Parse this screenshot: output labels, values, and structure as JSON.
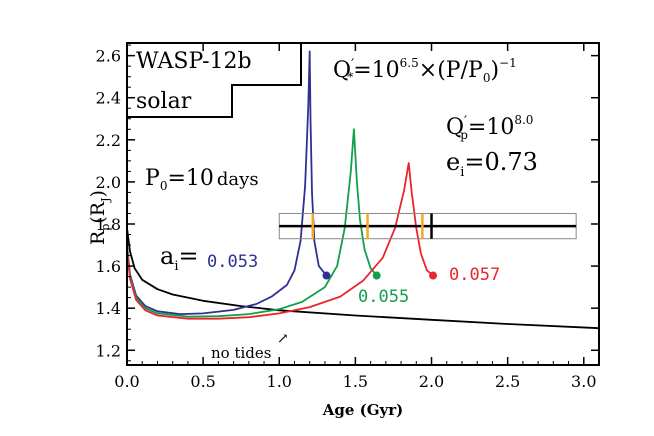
{
  "chart_data": {
    "type": "line",
    "xlabel": "Age (Gyr)",
    "ylabel_main": "R",
    "ylabel_sub_p": "p",
    "ylabel_paren": "(R",
    "ylabel_sub_j": "J",
    "ylabel_close": ")",
    "xlim": [
      0.0,
      3.1
    ],
    "ylim": [
      1.13,
      2.66
    ],
    "xticks": [
      0.0,
      0.5,
      1.0,
      1.5,
      2.0,
      2.5,
      3.0
    ],
    "xtick_labels": [
      "0.0",
      "0.5",
      "1.0",
      "1.5",
      "2.0",
      "2.5",
      "3.0"
    ],
    "yticks": [
      1.2,
      1.4,
      1.6,
      1.8,
      2.0,
      2.2,
      2.4,
      2.6
    ],
    "ytick_labels": [
      "1.2",
      "1.4",
      "1.6",
      "1.8",
      "2.0",
      "2.2",
      "2.4",
      "2.6"
    ],
    "series": [
      {
        "name": "no tides",
        "color": "#000000",
        "points": [
          [
            0.0,
            1.78
          ],
          [
            0.02,
            1.67
          ],
          [
            0.05,
            1.59
          ],
          [
            0.1,
            1.535
          ],
          [
            0.2,
            1.49
          ],
          [
            0.3,
            1.465
          ],
          [
            0.5,
            1.435
          ],
          [
            0.75,
            1.41
          ],
          [
            1.0,
            1.39
          ],
          [
            1.5,
            1.365
          ],
          [
            2.0,
            1.345
          ],
          [
            2.5,
            1.325
          ],
          [
            3.1,
            1.305
          ]
        ]
      },
      {
        "name": "0.053",
        "color": "#2e3192",
        "points": [
          [
            0.0,
            1.7
          ],
          [
            0.02,
            1.56
          ],
          [
            0.06,
            1.46
          ],
          [
            0.12,
            1.41
          ],
          [
            0.2,
            1.385
          ],
          [
            0.35,
            1.372
          ],
          [
            0.5,
            1.375
          ],
          [
            0.7,
            1.392
          ],
          [
            0.85,
            1.42
          ],
          [
            0.95,
            1.455
          ],
          [
            1.05,
            1.51
          ],
          [
            1.1,
            1.58
          ],
          [
            1.14,
            1.72
          ],
          [
            1.17,
            1.98
          ],
          [
            1.19,
            2.35
          ],
          [
            1.2,
            2.62
          ],
          [
            1.205,
            2.3
          ],
          [
            1.215,
            1.95
          ],
          [
            1.23,
            1.72
          ],
          [
            1.26,
            1.6
          ],
          [
            1.31,
            1.555
          ]
        ]
      },
      {
        "name": "0.055",
        "color": "#11a04a",
        "points": [
          [
            0.0,
            1.69
          ],
          [
            0.02,
            1.55
          ],
          [
            0.06,
            1.45
          ],
          [
            0.12,
            1.4
          ],
          [
            0.2,
            1.375
          ],
          [
            0.4,
            1.36
          ],
          [
            0.6,
            1.362
          ],
          [
            0.8,
            1.372
          ],
          [
            1.0,
            1.395
          ],
          [
            1.15,
            1.43
          ],
          [
            1.3,
            1.5
          ],
          [
            1.38,
            1.6
          ],
          [
            1.43,
            1.78
          ],
          [
            1.47,
            2.05
          ],
          [
            1.49,
            2.25
          ],
          [
            1.51,
            2.0
          ],
          [
            1.53,
            1.82
          ],
          [
            1.56,
            1.68
          ],
          [
            1.6,
            1.59
          ],
          [
            1.64,
            1.555
          ]
        ]
      },
      {
        "name": "0.057",
        "color": "#e8262c",
        "points": [
          [
            0.0,
            1.68
          ],
          [
            0.02,
            1.54
          ],
          [
            0.06,
            1.44
          ],
          [
            0.12,
            1.39
          ],
          [
            0.2,
            1.365
          ],
          [
            0.4,
            1.35
          ],
          [
            0.6,
            1.35
          ],
          [
            0.8,
            1.357
          ],
          [
            1.0,
            1.375
          ],
          [
            1.2,
            1.405
          ],
          [
            1.4,
            1.455
          ],
          [
            1.55,
            1.53
          ],
          [
            1.68,
            1.64
          ],
          [
            1.76,
            1.78
          ],
          [
            1.82,
            1.96
          ],
          [
            1.85,
            2.09
          ],
          [
            1.87,
            1.95
          ],
          [
            1.9,
            1.78
          ],
          [
            1.93,
            1.66
          ],
          [
            1.97,
            1.58
          ],
          [
            2.01,
            1.555
          ]
        ]
      }
    ],
    "end_markers": [
      {
        "series": "0.053",
        "x": 1.31,
        "y": 1.555,
        "color": "#2e3192"
      },
      {
        "series": "0.055",
        "x": 1.64,
        "y": 1.555,
        "color": "#11a04a"
      },
      {
        "series": "0.057",
        "x": 2.01,
        "y": 1.555,
        "color": "#e8262c"
      }
    ],
    "age_range": {
      "x_min": 1.0,
      "x_max": 2.95,
      "y": 1.79,
      "y_low": 1.73,
      "y_high": 1.85,
      "bar_x": 2.0,
      "bar_color": "#000000"
    },
    "orange_marks": {
      "color": "#f7a823",
      "x": [
        1.22,
        1.58,
        1.94
      ]
    },
    "labels": {
      "planet": "WASP-12b",
      "model": "solar",
      "q_star_main": "Q",
      "q_star_prime": "′",
      "q_star_sub": "*",
      "q_star_eq": "=10",
      "q_star_exp": "6.5",
      "q_star_mid": "×(P/P",
      "q_star_sub0": "0",
      "q_star_close": ")",
      "q_star_exp2": "−1",
      "q_p_main": "Q",
      "q_p_prime": "′",
      "q_p_sub": "p",
      "q_p_eq": "=10",
      "q_p_exp": "8.0",
      "e_main": "e",
      "e_sub": "i",
      "e_val": "=0.73",
      "p0_main": "P",
      "p0_sub": "0",
      "p0_val": "=10",
      "p0_unit": "days",
      "a_main": "a",
      "a_sub": "i",
      "a_eq": "=",
      "a_053": "0.053",
      "a_055": "0.055",
      "a_057": "0.057",
      "no_tides": "no tides",
      "arrow": "↗"
    }
  }
}
